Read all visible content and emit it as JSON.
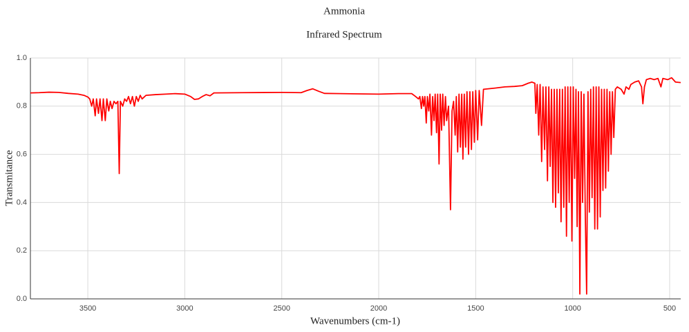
{
  "chart_data": {
    "type": "line",
    "title": "Ammonia",
    "subtitle": "Infrared Spectrum",
    "xlabel": "Wavenumbers (cm-1)",
    "ylabel": "Transmitance",
    "color": "#ff0000",
    "grid": true,
    "xlim": [
      3796,
      443
    ],
    "ylim": [
      0,
      1
    ],
    "xticks": [
      3500,
      3000,
      2500,
      2000,
      1500,
      1000,
      500
    ],
    "yticks": [
      {
        "value": 0,
        "label": "0.0"
      },
      0.2,
      0.4,
      0.6,
      0.8,
      {
        "value": 1,
        "label": "1.0"
      }
    ],
    "x": [
      3796,
      3750,
      3700,
      3650,
      3600,
      3550,
      3520,
      3500,
      3490,
      3480,
      3472,
      3462,
      3455,
      3445,
      3437,
      3427,
      3420,
      3410,
      3402,
      3392,
      3384,
      3375,
      3365,
      3355,
      3345,
      3338,
      3332,
      3320,
      3310,
      3300,
      3290,
      3280,
      3270,
      3260,
      3250,
      3240,
      3230,
      3220,
      3200,
      3150,
      3100,
      3050,
      3000,
      2970,
      2950,
      2930,
      2910,
      2890,
      2870,
      2850,
      2700,
      2500,
      2400,
      2370,
      2340,
      2310,
      2280,
      2200,
      2000,
      1900,
      1830,
      1810,
      1795,
      1788,
      1780,
      1774,
      1768,
      1762,
      1755,
      1749,
      1742,
      1736,
      1728,
      1722,
      1715,
      1709,
      1702,
      1696,
      1689,
      1683,
      1676,
      1670,
      1663,
      1656,
      1650,
      1640,
      1630,
      1622,
      1614,
      1606,
      1600,
      1593,
      1586,
      1579,
      1572,
      1566,
      1559,
      1552,
      1545,
      1537,
      1530,
      1522,
      1515,
      1507,
      1500,
      1490,
      1482,
      1470,
      1460,
      1400,
      1350,
      1300,
      1260,
      1230,
      1210,
      1195,
      1190,
      1183,
      1175,
      1168,
      1160,
      1153,
      1145,
      1138,
      1130,
      1123,
      1116,
      1109,
      1102,
      1095,
      1088,
      1081,
      1074,
      1067,
      1060,
      1053,
      1046,
      1039,
      1032,
      1025,
      1018,
      1011,
      1004,
      997,
      990,
      983,
      977,
      970,
      963,
      956,
      949,
      942,
      935,
      928,
      921,
      914,
      907,
      900,
      893,
      886,
      879,
      872,
      865,
      858,
      851,
      844,
      837,
      830,
      823,
      816,
      809,
      802,
      795,
      788,
      780,
      770,
      750,
      735,
      725,
      710,
      700,
      680,
      660,
      645,
      638,
      630,
      620,
      600,
      580,
      560,
      545,
      535,
      510,
      490,
      470,
      443
    ],
    "values": [
      0.855,
      0.856,
      0.858,
      0.857,
      0.853,
      0.85,
      0.845,
      0.838,
      0.83,
      0.8,
      0.83,
      0.76,
      0.83,
      0.77,
      0.83,
      0.74,
      0.83,
      0.74,
      0.83,
      0.78,
      0.82,
      0.79,
      0.82,
      0.81,
      0.82,
      0.52,
      0.82,
      0.8,
      0.83,
      0.82,
      0.84,
      0.81,
      0.84,
      0.8,
      0.84,
      0.82,
      0.845,
      0.83,
      0.845,
      0.848,
      0.85,
      0.852,
      0.85,
      0.84,
      0.828,
      0.83,
      0.84,
      0.848,
      0.843,
      0.855,
      0.856,
      0.857,
      0.856,
      0.865,
      0.872,
      0.862,
      0.853,
      0.852,
      0.85,
      0.852,
      0.852,
      0.84,
      0.83,
      0.84,
      0.79,
      0.84,
      0.8,
      0.84,
      0.73,
      0.84,
      0.78,
      0.85,
      0.68,
      0.84,
      0.74,
      0.85,
      0.69,
      0.85,
      0.56,
      0.85,
      0.7,
      0.85,
      0.72,
      0.84,
      0.74,
      0.8,
      0.37,
      0.78,
      0.82,
      0.68,
      0.84,
      0.61,
      0.85,
      0.63,
      0.85,
      0.58,
      0.85,
      0.63,
      0.86,
      0.6,
      0.86,
      0.62,
      0.86,
      0.65,
      0.865,
      0.66,
      0.865,
      0.72,
      0.87,
      0.875,
      0.88,
      0.882,
      0.885,
      0.895,
      0.9,
      0.895,
      0.77,
      0.89,
      0.68,
      0.89,
      0.57,
      0.88,
      0.62,
      0.88,
      0.49,
      0.88,
      0.55,
      0.87,
      0.4,
      0.87,
      0.38,
      0.87,
      0.44,
      0.87,
      0.32,
      0.87,
      0.38,
      0.88,
      0.26,
      0.88,
      0.4,
      0.88,
      0.24,
      0.88,
      0.5,
      0.87,
      0.3,
      0.86,
      0.02,
      0.86,
      0.4,
      0.85,
      0.35,
      0.02,
      0.86,
      0.36,
      0.87,
      0.42,
      0.88,
      0.29,
      0.88,
      0.29,
      0.88,
      0.34,
      0.87,
      0.45,
      0.87,
      0.46,
      0.87,
      0.53,
      0.86,
      0.6,
      0.86,
      0.67,
      0.87,
      0.88,
      0.87,
      0.85,
      0.88,
      0.87,
      0.89,
      0.9,
      0.905,
      0.88,
      0.81,
      0.88,
      0.91,
      0.915,
      0.91,
      0.915,
      0.88,
      0.915,
      0.91,
      0.918,
      0.9,
      0.898
    ]
  }
}
